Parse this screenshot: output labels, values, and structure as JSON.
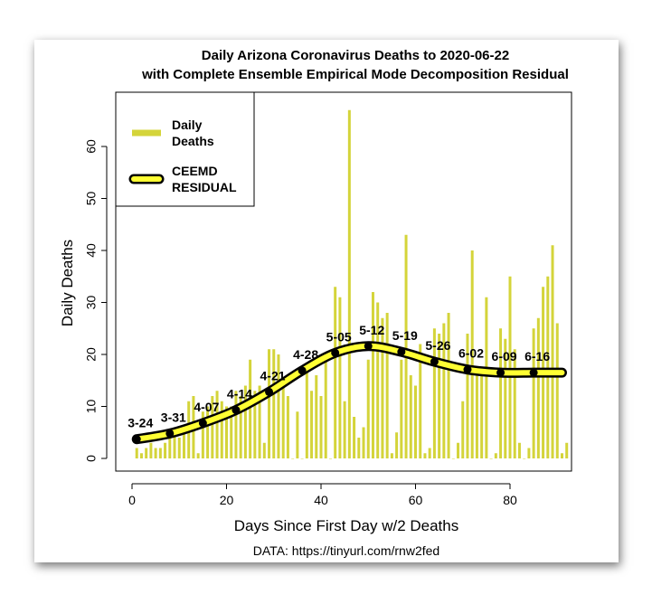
{
  "chart_data": {
    "type": "bar",
    "title": "Daily Arizona Coronavirus Deaths to 2020-06-22",
    "subtitle": "with Complete Ensemble Empirical Mode Decomposition Residual",
    "xlabel": "Days Since First Day w/2 Deaths",
    "ylabel": "Daily Deaths",
    "caption": "DATA: https://tinyurl.com/rnw2fed",
    "xlim": [
      0,
      92
    ],
    "ylim": [
      0,
      70
    ],
    "xticks": [
      0,
      20,
      40,
      60,
      80
    ],
    "yticks": [
      0,
      10,
      20,
      30,
      40,
      50,
      60
    ],
    "legend": {
      "placement": "top-left",
      "entries": [
        {
          "label": [
            "Daily",
            "Deaths"
          ]
        },
        {
          "label": [
            "CEEMD",
            "RESIDUAL"
          ]
        }
      ]
    },
    "colors": {
      "bars": "#d4d43a",
      "residual": "#ffff33",
      "outline": "#000000"
    },
    "bars": {
      "x_start": 1,
      "values": [
        2,
        1,
        2,
        3,
        2,
        2,
        3,
        5,
        5,
        4,
        6,
        11,
        12,
        1,
        9,
        10,
        12,
        13,
        11,
        10,
        10,
        13,
        12,
        14,
        19,
        13,
        14,
        3,
        21,
        21,
        20,
        14,
        12,
        0,
        9,
        0,
        17,
        13,
        16,
        12,
        20,
        0,
        33,
        31,
        11,
        67,
        8,
        4,
        6,
        19,
        32,
        30,
        27,
        28,
        1,
        5,
        19,
        43,
        16,
        14,
        22,
        1,
        2,
        25,
        24,
        26,
        28,
        0,
        3,
        11,
        24,
        40,
        16,
        16,
        31,
        0,
        1,
        25,
        23,
        35,
        21,
        3,
        0,
        2,
        25,
        27,
        33,
        35,
        41,
        26,
        1,
        3
      ]
    },
    "residual": {
      "x": [
        1,
        8,
        15,
        22,
        29,
        36,
        43,
        50,
        57,
        64,
        71,
        78,
        85,
        91
      ],
      "y": [
        3.7,
        4.8,
        6.8,
        9.3,
        12.8,
        16.9,
        20.3,
        21.6,
        20.5,
        18.6,
        17.1,
        16.5,
        16.5,
        16.5
      ]
    },
    "markers": [
      {
        "x": 1,
        "label": "3-24"
      },
      {
        "x": 8,
        "label": "3-31"
      },
      {
        "x": 15,
        "label": "4-07"
      },
      {
        "x": 22,
        "label": "4-14"
      },
      {
        "x": 29,
        "label": "4-21"
      },
      {
        "x": 36,
        "label": "4-28"
      },
      {
        "x": 43,
        "label": "5-05"
      },
      {
        "x": 50,
        "label": "5-12"
      },
      {
        "x": 57,
        "label": "5-19"
      },
      {
        "x": 64,
        "label": "5-26"
      },
      {
        "x": 71,
        "label": "6-02"
      },
      {
        "x": 78,
        "label": "6-09"
      },
      {
        "x": 85,
        "label": "6-16"
      }
    ]
  }
}
